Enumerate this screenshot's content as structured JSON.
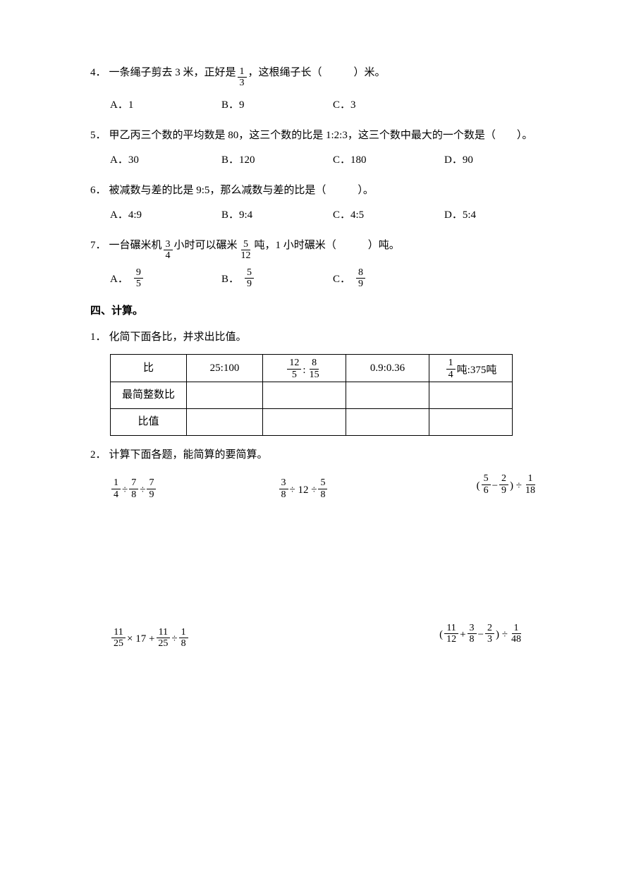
{
  "q4": {
    "num": "4．",
    "text_before": "一条绳子剪去 3 米，正好是",
    "frac_num": "1",
    "frac_den": "3",
    "text_after": "，这根绳子长（　　　）米。",
    "options": {
      "A": "A．1",
      "B": "B．9",
      "C": "C．3"
    }
  },
  "q5": {
    "num": "5．",
    "text": "甲乙丙三个数的平均数是 80，这三个数的比是 1:2:3，这三个数中最大的一个数是（　　）。",
    "options": {
      "A": "A．30",
      "B": "B．120",
      "C": "C．180",
      "D": "D．90"
    }
  },
  "q6": {
    "num": "6．",
    "text": "被减数与差的比是 9:5，那么减数与差的比是（　　　）。",
    "options": {
      "A": "A．4:9",
      "B": "B．9:4",
      "C": "C．4:5",
      "D": "D．5:4"
    }
  },
  "q7": {
    "num": "7．",
    "t1": "一台碾米机",
    "f1": {
      "n": "3",
      "d": "4"
    },
    "t2": "小时可以碾米",
    "f2": {
      "n": "5",
      "d": "12"
    },
    "t3": "吨，1 小时碾米（　　　）吨。",
    "options": {
      "A": {
        "label": "A．",
        "n": "9",
        "d": "5"
      },
      "B": {
        "label": "B．",
        "n": "5",
        "d": "9"
      },
      "C": {
        "label": "C．",
        "n": "8",
        "d": "9"
      }
    }
  },
  "section4_title": "四、计算。",
  "q_simplify": {
    "num": "1．",
    "text": "化简下面各比，并求出比值。",
    "header_ratio": "比",
    "header_simplest": "最简整数比",
    "header_value": "比值",
    "col2_val": "25:100",
    "col3": {
      "f1n": "12",
      "f1d": "5",
      "sep": " : ",
      "f2n": "8",
      "f2d": "15"
    },
    "col4_val": "0.9:0.36",
    "col5": {
      "fn": "1",
      "fd": "4",
      "unit1": "吨",
      "sep": ":375",
      "unit2": "吨"
    }
  },
  "q_calc": {
    "num": "2．",
    "text": "计算下面各题，能简算的要简算。",
    "row1": {
      "a": {
        "parts": [
          {
            "type": "frac",
            "n": "1",
            "d": "4"
          },
          {
            "type": "text",
            "v": " ÷ "
          },
          {
            "type": "frac",
            "n": "7",
            "d": "8"
          },
          {
            "type": "text",
            "v": " ÷ "
          },
          {
            "type": "frac",
            "n": "7",
            "d": "9"
          }
        ]
      },
      "b": {
        "parts": [
          {
            "type": "frac",
            "n": "3",
            "d": "8"
          },
          {
            "type": "text",
            "v": " ÷ 12 ÷ "
          },
          {
            "type": "frac",
            "n": "5",
            "d": "8"
          }
        ]
      },
      "c": {
        "parts": [
          {
            "type": "text",
            "v": "("
          },
          {
            "type": "frac",
            "n": "5",
            "d": "6"
          },
          {
            "type": "text",
            "v": " − "
          },
          {
            "type": "frac",
            "n": "2",
            "d": "9"
          },
          {
            "type": "text",
            "v": ") ÷ "
          },
          {
            "type": "frac",
            "n": "1",
            "d": "18"
          }
        ]
      }
    },
    "row2": {
      "a": {
        "parts": [
          {
            "type": "frac",
            "n": "11",
            "d": "25"
          },
          {
            "type": "text",
            "v": " × 17 + "
          },
          {
            "type": "frac",
            "n": "11",
            "d": "25"
          },
          {
            "type": "text",
            "v": " ÷ "
          },
          {
            "type": "frac",
            "n": "1",
            "d": "8"
          }
        ]
      },
      "b": {
        "parts": [
          {
            "type": "text",
            "v": "("
          },
          {
            "type": "frac",
            "n": "11",
            "d": "12"
          },
          {
            "type": "text",
            "v": " + "
          },
          {
            "type": "frac",
            "n": "3",
            "d": "8"
          },
          {
            "type": "text",
            "v": " − "
          },
          {
            "type": "frac",
            "n": "2",
            "d": "3"
          },
          {
            "type": "text",
            "v": ") ÷ "
          },
          {
            "type": "frac",
            "n": "1",
            "d": "48"
          }
        ]
      }
    }
  }
}
